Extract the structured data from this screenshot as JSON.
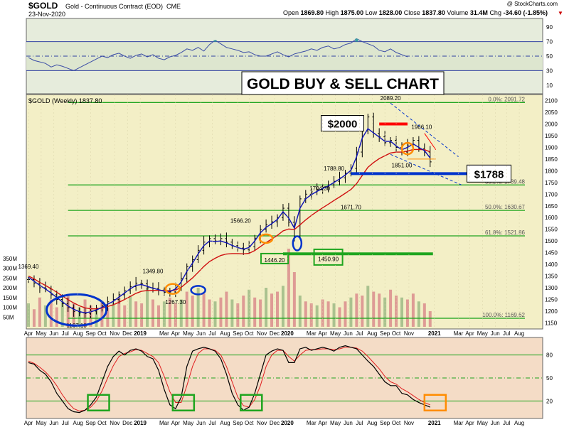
{
  "header": {
    "symbol": "$GOLD",
    "name": "Gold - Continuous Contract (EOD)",
    "exchange": "CME",
    "date": "23-Nov-2020",
    "credit": "@ StockCharts.com",
    "open_label": "Open",
    "open": "1869.80",
    "high_label": "High",
    "high": "1875.00",
    "low_label": "Low",
    "low": "1828.00",
    "close_label": "Close",
    "close": "1837.80",
    "volume_label": "Volume",
    "volume": "31.4M",
    "chg_label": "Chg",
    "chg": "-34.60 (-1.85%)"
  },
  "colors": {
    "price_bg": "#f3efc6",
    "rsi_bg": "#e6ecdc",
    "stoch_bg": "#f4dcc6",
    "fib": "#1fa51f",
    "ema_fast": "#0a10b8",
    "ema_slow": "#d01010",
    "volume": "#d98c8c",
    "volume_up": "#9cba85",
    "highlight_blue": "#0033cc",
    "highlight_orange": "#ff8c00",
    "highlight_green": "#1fa51f",
    "red_level": "#ff0000"
  },
  "chart_data": [
    {
      "type": "line",
      "panel": "rsi",
      "ylim": [
        0,
        100
      ],
      "ticks": [
        "90",
        "70",
        "50",
        "30",
        "10"
      ],
      "levels": [
        70,
        50,
        30
      ],
      "x": [
        0,
        2,
        4,
        6,
        8,
        10,
        12,
        14,
        16,
        18,
        20,
        22,
        24,
        26,
        28,
        30,
        32,
        34,
        36,
        38,
        40,
        42,
        44,
        46,
        48,
        50,
        52,
        54,
        56,
        58,
        60,
        62,
        64,
        66,
        68,
        70,
        72,
        74,
        76,
        78,
        80,
        82,
        84,
        86,
        88,
        90,
        92,
        94,
        96,
        98,
        100,
        102,
        104,
        106,
        108,
        110,
        112,
        114,
        116,
        118,
        120,
        122,
        124,
        126,
        128,
        130,
        132,
        134
      ],
      "values": [
        48,
        44,
        42,
        40,
        35,
        38,
        36,
        33,
        30,
        34,
        38,
        42,
        46,
        50,
        48,
        52,
        54,
        50,
        47,
        51,
        53,
        49,
        52,
        47,
        45,
        49,
        51,
        55,
        60,
        58,
        62,
        57,
        66,
        72,
        67,
        62,
        60,
        58,
        55,
        56,
        52,
        50,
        50,
        53,
        56,
        52,
        49,
        53,
        55,
        57,
        60,
        58,
        62,
        64,
        60,
        62,
        66,
        68,
        74,
        70,
        67,
        64,
        58,
        56,
        60,
        55,
        52,
        49
      ]
    },
    {
      "type": "bar",
      "panel": "price",
      "title": "$GOLD (Weekly) 1837.80",
      "annotation": "GOLD BUY & SELL CHART",
      "ylim": [
        1130,
        2120
      ],
      "yticks": [
        "2100",
        "2050",
        "2000",
        "1950",
        "1900",
        "1850",
        "1800",
        "1750",
        "1700",
        "1650",
        "1600",
        "1550",
        "1500",
        "1450",
        "1400",
        "1350",
        "1300",
        "1250",
        "1200",
        "1150"
      ],
      "fib_levels": [
        {
          "label": "0.0%: 2091.72",
          "value": 2091.72
        },
        {
          "label": "38.2%: 1739.48",
          "value": 1739.48
        },
        {
          "label": "50.0%: 1630.67",
          "value": 1630.67
        },
        {
          "label": "61.8%: 1521.86",
          "value": 1521.86
        },
        {
          "label": "100.0%: 1169.62",
          "value": 1169.62
        }
      ],
      "price_labels": [
        {
          "text": "1369.40",
          "x": 0,
          "y": 1369.4
        },
        {
          "text": "1167.10",
          "x": 17,
          "y": 1167.1
        },
        {
          "text": "1349.80",
          "x": 44,
          "y": 1349.8
        },
        {
          "text": "1267.30",
          "x": 52,
          "y": 1267.3
        },
        {
          "text": "1566.20",
          "x": 75,
          "y": 1566.2
        },
        {
          "text": "1446.20",
          "x": 87,
          "y": 1446.2
        },
        {
          "text": "1704.30",
          "x": 103,
          "y": 1704.3
        },
        {
          "text": "1450.90",
          "x": 106,
          "y": 1450.9
        },
        {
          "text": "1671.70",
          "x": 114,
          "y": 1671.7
        },
        {
          "text": "1788.80",
          "x": 108,
          "y": 1788.8
        },
        {
          "text": "2089.20",
          "x": 128,
          "y": 2089.2
        },
        {
          "text": "1966.10",
          "x": 139,
          "y": 1966.1
        },
        {
          "text": "1851.00",
          "x": 132,
          "y": 1851.0
        }
      ],
      "callouts": [
        {
          "text": "$2000",
          "value": 2000
        },
        {
          "text": "$1788",
          "value": 1788
        }
      ],
      "x": [
        0,
        2,
        4,
        6,
        8,
        10,
        12,
        14,
        16,
        18,
        20,
        22,
        24,
        26,
        28,
        30,
        32,
        34,
        36,
        38,
        40,
        42,
        44,
        46,
        48,
        50,
        52,
        54,
        56,
        58,
        60,
        62,
        64,
        66,
        68,
        70,
        72,
        74,
        76,
        78,
        80,
        82,
        84,
        86,
        88,
        90,
        92,
        94,
        96,
        98,
        100,
        102,
        104,
        106,
        108,
        110,
        112,
        114,
        116,
        118,
        120,
        122,
        124,
        126,
        128,
        130,
        132,
        134,
        136,
        138,
        140,
        142
      ],
      "close": [
        1335,
        1320,
        1300,
        1295,
        1270,
        1250,
        1232,
        1215,
        1198,
        1192,
        1190,
        1200,
        1213,
        1223,
        1240,
        1250,
        1270,
        1287,
        1305,
        1320,
        1317,
        1300,
        1298,
        1290,
        1280,
        1282,
        1300,
        1340,
        1390,
        1420,
        1460,
        1495,
        1510,
        1500,
        1510,
        1495,
        1480,
        1470,
        1462,
        1475,
        1512,
        1550,
        1570,
        1582,
        1600,
        1640,
        1580,
        1520,
        1680,
        1700,
        1710,
        1720,
        1730,
        1740,
        1755,
        1770,
        1790,
        1810,
        1880,
        1970,
        2030,
        1960,
        1945,
        1920,
        1930,
        1900,
        1880,
        1910,
        1930,
        1895,
        1880,
        1838
      ],
      "ema_fast": [
        1345,
        1328,
        1310,
        1295,
        1278,
        1258,
        1240,
        1222,
        1208,
        1198,
        1193,
        1197,
        1205,
        1216,
        1230,
        1242,
        1260,
        1278,
        1296,
        1310,
        1314,
        1306,
        1298,
        1292,
        1285,
        1284,
        1295,
        1325,
        1370,
        1405,
        1445,
        1480,
        1500,
        1498,
        1500,
        1492,
        1481,
        1472,
        1465,
        1472,
        1500,
        1535,
        1558,
        1574,
        1592,
        1625,
        1598,
        1555,
        1640,
        1680,
        1698,
        1712,
        1724,
        1735,
        1750,
        1765,
        1782,
        1802,
        1860,
        1940,
        1980,
        1962,
        1944,
        1926,
        1926,
        1906,
        1890,
        1900,
        1915,
        1900,
        1886,
        1855
      ],
      "ema_slow": [
        1350,
        1338,
        1323,
        1310,
        1296,
        1281,
        1265,
        1249,
        1235,
        1223,
        1214,
        1210,
        1210,
        1213,
        1220,
        1227,
        1238,
        1250,
        1263,
        1276,
        1285,
        1288,
        1289,
        1289,
        1288,
        1287,
        1290,
        1302,
        1322,
        1342,
        1366,
        1391,
        1412,
        1426,
        1438,
        1444,
        1446,
        1446,
        1445,
        1447,
        1459,
        1476,
        1493,
        1508,
        1524,
        1543,
        1551,
        1549,
        1569,
        1590,
        1609,
        1626,
        1642,
        1657,
        1673,
        1688,
        1704,
        1720,
        1745,
        1780,
        1815,
        1835,
        1852,
        1864,
        1876,
        1880,
        1880,
        1884,
        1891,
        1891,
        1890,
        1881
      ]
    },
    {
      "type": "bar",
      "panel": "volume",
      "yticks": [
        "350M",
        "300M",
        "250M",
        "200M",
        "150M",
        "100M",
        "50M"
      ],
      "ylim": [
        0,
        400
      ],
      "x": [
        0,
        2,
        4,
        6,
        8,
        10,
        12,
        14,
        16,
        18,
        20,
        22,
        24,
        26,
        28,
        30,
        32,
        34,
        36,
        38,
        40,
        42,
        44,
        46,
        48,
        50,
        52,
        54,
        56,
        58,
        60,
        62,
        64,
        66,
        68,
        70,
        72,
        74,
        76,
        78,
        80,
        82,
        84,
        86,
        88,
        90,
        92,
        94,
        96,
        98,
        100,
        102,
        104,
        106,
        108,
        110,
        112,
        114,
        116,
        118,
        120,
        122,
        124,
        126,
        128,
        130,
        132,
        134,
        136,
        138,
        140,
        142
      ],
      "values": [
        120,
        90,
        150,
        110,
        140,
        100,
        130,
        160,
        120,
        100,
        140,
        110,
        90,
        130,
        100,
        120,
        150,
        110,
        160,
        130,
        120,
        200,
        140,
        110,
        130,
        150,
        120,
        140,
        180,
        160,
        200,
        170,
        140,
        130,
        150,
        180,
        140,
        120,
        160,
        190,
        150,
        140,
        200,
        170,
        180,
        210,
        400,
        280,
        160,
        130,
        120,
        110,
        140,
        130,
        120,
        100,
        130,
        150,
        170,
        160,
        210,
        180,
        170,
        150,
        190,
        160,
        150,
        140,
        170,
        130,
        120,
        80
      ]
    },
    {
      "type": "line",
      "panel": "stochastic",
      "ylim": [
        0,
        100
      ],
      "ticks": [
        "80",
        "50",
        "20"
      ],
      "levels": [
        80,
        50,
        20
      ],
      "x": [
        0,
        2,
        4,
        6,
        8,
        10,
        12,
        14,
        16,
        18,
        20,
        22,
        24,
        26,
        28,
        30,
        32,
        34,
        36,
        38,
        40,
        42,
        44,
        46,
        48,
        50,
        52,
        54,
        56,
        58,
        60,
        62,
        64,
        66,
        68,
        70,
        72,
        74,
        76,
        78,
        80,
        82,
        84,
        86,
        88,
        90,
        92,
        94,
        96,
        98,
        100,
        102,
        104,
        106,
        108,
        110,
        112,
        114,
        116,
        118,
        120,
        122,
        124,
        126,
        128,
        130,
        132,
        134,
        136,
        138,
        140,
        142
      ],
      "k": [
        70,
        68,
        60,
        55,
        45,
        30,
        20,
        10,
        6,
        5,
        8,
        15,
        25,
        45,
        65,
        78,
        85,
        80,
        86,
        88,
        85,
        78,
        75,
        60,
        35,
        15,
        10,
        25,
        65,
        85,
        88,
        90,
        88,
        85,
        75,
        55,
        30,
        15,
        8,
        12,
        30,
        55,
        80,
        85,
        88,
        86,
        70,
        70,
        88,
        90,
        86,
        88,
        90,
        88,
        85,
        90,
        92,
        90,
        88,
        80,
        72,
        65,
        55,
        45,
        40,
        40,
        30,
        28,
        22,
        18,
        15,
        12
      ],
      "d": [
        72,
        69,
        64,
        58,
        50,
        40,
        28,
        18,
        10,
        7,
        8,
        12,
        20,
        33,
        50,
        66,
        78,
        82,
        84,
        87,
        86,
        82,
        78,
        70,
        52,
        32,
        18,
        18,
        40,
        65,
        82,
        88,
        88,
        86,
        80,
        65,
        45,
        25,
        14,
        12,
        22,
        40,
        65,
        80,
        86,
        86,
        78,
        72,
        80,
        86,
        87,
        87,
        88,
        88,
        87,
        88,
        90,
        90,
        89,
        85,
        78,
        70,
        62,
        52,
        45,
        42,
        36,
        32,
        27,
        22,
        18,
        15
      ]
    }
  ],
  "xaxis": {
    "labels": [
      {
        "text": "Apr",
        "x": 0,
        "bold": false
      },
      {
        "text": "May",
        "x": 4.5,
        "bold": false
      },
      {
        "text": "Jun",
        "x": 9,
        "bold": false
      },
      {
        "text": "Jul",
        "x": 13,
        "bold": false
      },
      {
        "text": "Aug",
        "x": 17.5,
        "bold": false
      },
      {
        "text": "Sep",
        "x": 22,
        "bold": false
      },
      {
        "text": "Oct",
        "x": 26,
        "bold": false
      },
      {
        "text": "Nov",
        "x": 30.5,
        "bold": false
      },
      {
        "text": "Dec",
        "x": 35,
        "bold": false
      },
      {
        "text": "2019",
        "x": 39.5,
        "bold": true
      },
      {
        "text": "Mar",
        "x": 48,
        "bold": false
      },
      {
        "text": "Apr",
        "x": 52,
        "bold": false
      },
      {
        "text": "May",
        "x": 56.5,
        "bold": false
      },
      {
        "text": "Jun",
        "x": 61,
        "bold": false
      },
      {
        "text": "Jul",
        "x": 65,
        "bold": false
      },
      {
        "text": "Aug",
        "x": 69.5,
        "bold": false
      },
      {
        "text": "Sep",
        "x": 74,
        "bold": false
      },
      {
        "text": "Oct",
        "x": 78,
        "bold": false
      },
      {
        "text": "Nov",
        "x": 82.5,
        "bold": false
      },
      {
        "text": "Dec",
        "x": 87,
        "bold": false
      },
      {
        "text": "2020",
        "x": 91.5,
        "bold": true
      },
      {
        "text": "Mar",
        "x": 100,
        "bold": false
      },
      {
        "text": "Apr",
        "x": 104,
        "bold": false
      },
      {
        "text": "May",
        "x": 108.5,
        "bold": false
      },
      {
        "text": "Jun",
        "x": 113,
        "bold": false
      },
      {
        "text": "Jul",
        "x": 117,
        "bold": false
      },
      {
        "text": "Aug",
        "x": 121.5,
        "bold": false
      },
      {
        "text": "Sep",
        "x": 126,
        "bold": false
      },
      {
        "text": "Oct",
        "x": 130,
        "bold": false
      },
      {
        "text": "Nov",
        "x": 134.5,
        "bold": false
      },
      {
        "text": "2021",
        "x": 143.5,
        "bold": true
      },
      {
        "text": "Mar",
        "x": 152,
        "bold": false
      },
      {
        "text": "Apr",
        "x": 156,
        "bold": false
      },
      {
        "text": "May",
        "x": 160.5,
        "bold": false
      },
      {
        "text": "Jun",
        "x": 165,
        "bold": false
      },
      {
        "text": "Jul",
        "x": 169,
        "bold": false
      },
      {
        "text": "Aug",
        "x": 173.5,
        "bold": false
      }
    ],
    "xlim": [
      0,
      176
    ]
  }
}
